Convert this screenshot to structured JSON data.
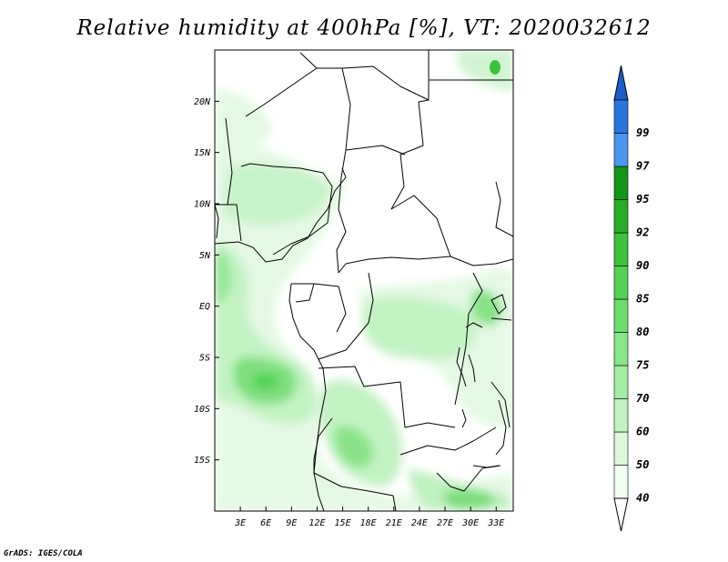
{
  "title": "Relative humidity at 400hPa [%], VT: 2020032612",
  "credit": "GrADS: IGES/COLA",
  "map": {
    "lon_range": [
      0,
      35
    ],
    "lat_range": [
      -20,
      25
    ],
    "lon_ticks": [
      {
        "lon": 3,
        "label": "3E"
      },
      {
        "lon": 6,
        "label": "6E"
      },
      {
        "lon": 9,
        "label": "9E"
      },
      {
        "lon": 12,
        "label": "12E"
      },
      {
        "lon": 15,
        "label": "15E"
      },
      {
        "lon": 18,
        "label": "18E"
      },
      {
        "lon": 21,
        "label": "21E"
      },
      {
        "lon": 24,
        "label": "24E"
      },
      {
        "lon": 27,
        "label": "27E"
      },
      {
        "lon": 30,
        "label": "30E"
      },
      {
        "lon": 33,
        "label": "33E"
      }
    ],
    "lat_ticks": [
      {
        "lat": 20,
        "label": "20N"
      },
      {
        "lat": 15,
        "label": "15N"
      },
      {
        "lat": 10,
        "label": "10N"
      },
      {
        "lat": 5,
        "label": "5N"
      },
      {
        "lat": 0,
        "label": "EQ"
      },
      {
        "lat": -5,
        "label": "5S"
      },
      {
        "lat": -10,
        "label": "10S"
      },
      {
        "lat": -15,
        "label": "15S"
      }
    ]
  },
  "colorbar": {
    "bands": [
      {
        "label": "40",
        "color": "#f2fdf2"
      },
      {
        "label": "50",
        "color": "#dcf8dc"
      },
      {
        "label": "60",
        "color": "#c2f2c2"
      },
      {
        "label": "70",
        "color": "#a5eca5"
      },
      {
        "label": "75",
        "color": "#88e588"
      },
      {
        "label": "80",
        "color": "#6edd6e"
      },
      {
        "label": "85",
        "color": "#55d255"
      },
      {
        "label": "90",
        "color": "#3ec23e"
      },
      {
        "label": "92",
        "color": "#28ad28"
      },
      {
        "label": "95",
        "color": "#14951a"
      },
      {
        "label": "97",
        "color": "#4a96ee"
      },
      {
        "label": "99",
        "color": "#2a74de"
      }
    ],
    "top_color": "#1b5ec9",
    "bottom_color": "#ffffff"
  }
}
